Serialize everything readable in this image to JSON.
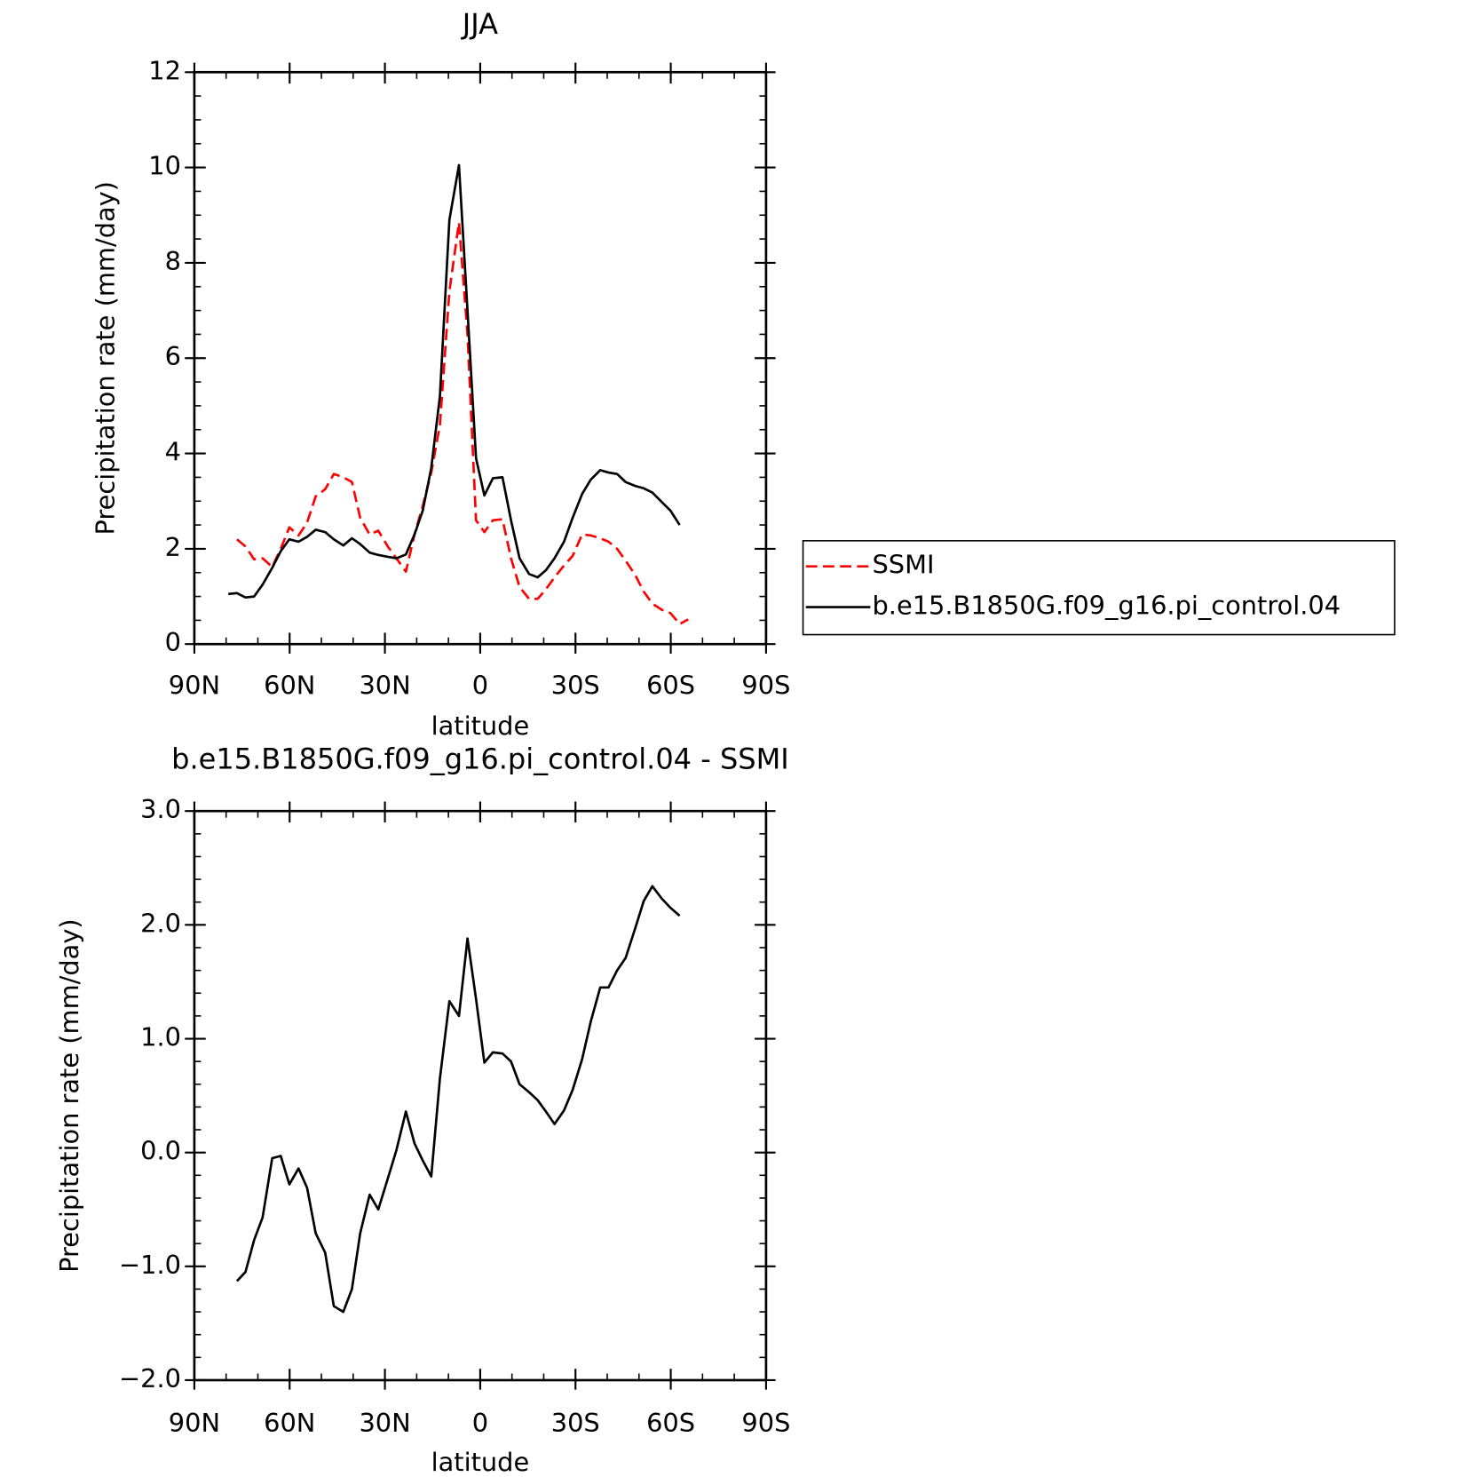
{
  "chart_data": [
    {
      "type": "line",
      "title": "JJA",
      "x_label": "latitude",
      "y_label": "Precipitation rate (mm/day)",
      "xlim": [
        90,
        -90
      ],
      "xticks": [
        {
          "value": 90,
          "label": "90N"
        },
        {
          "value": 60,
          "label": "60N"
        },
        {
          "value": 30,
          "label": "30N"
        },
        0,
        {
          "value": -30,
          "label": "30S"
        },
        {
          "value": -60,
          "label": "60S"
        },
        {
          "value": -90,
          "label": "90S"
        }
      ],
      "xminorticks": [
        80,
        70,
        50,
        40,
        20,
        10,
        -10,
        -20,
        -40,
        -50,
        -70,
        -80
      ],
      "ylim": [
        0,
        12
      ],
      "yticks": [
        0,
        2,
        4,
        6,
        8,
        10,
        12
      ],
      "yminorticks": [
        0.5,
        1,
        1.5,
        2.5,
        3,
        3.5,
        4.5,
        5,
        5.5,
        6.5,
        7,
        7.5,
        8.5,
        9,
        9.5,
        10.5,
        11,
        11.5
      ],
      "legend": "right",
      "series": [
        {
          "name": "SSMI",
          "color": "#ff0000",
          "line_style": "dashed",
          "x": [
            76.6,
            73.9,
            71.2,
            68.5,
            65.5,
            62.8,
            60.1,
            57.2,
            54.5,
            51.8,
            48.8,
            46.1,
            43.1,
            40.4,
            37.8,
            34.8,
            32.1,
            29.1,
            26.4,
            23.4,
            20.7,
            18.1,
            15.4,
            12.7,
            9.7,
            6.7,
            4.0,
            1.3,
            -1.3,
            -4.0,
            -7.0,
            -9.7,
            -12.4,
            -15.4,
            -18.1,
            -20.7,
            -23.4,
            -26.4,
            -29.1,
            -32.1,
            -34.8,
            -37.8,
            -40.4,
            -43.1,
            -45.8,
            -48.8,
            -51.5,
            -54.2,
            -57.2,
            -59.9,
            -62.8,
            -65.5
          ],
          "values": [
            2.2,
            2.05,
            1.78,
            1.8,
            1.62,
            2.0,
            2.45,
            2.28,
            2.55,
            3.1,
            3.25,
            3.57,
            3.5,
            3.4,
            2.65,
            2.3,
            2.38,
            2.05,
            1.8,
            1.52,
            2.3,
            2.9,
            3.6,
            4.6,
            7.4,
            8.85,
            6.5,
            2.6,
            2.35,
            2.6,
            2.62,
            1.8,
            1.2,
            0.95,
            0.95,
            1.15,
            1.4,
            1.65,
            1.85,
            2.3,
            2.28,
            2.22,
            2.15,
            2.0,
            1.75,
            1.45,
            1.1,
            0.85,
            0.72,
            0.65,
            0.42,
            0.52
          ]
        },
        {
          "name": "b.e15.B1850G.f09_g16.pi_control.04",
          "color": "#000000",
          "line_style": "solid",
          "x": [
            79.3,
            76.6,
            73.9,
            71.2,
            68.5,
            65.5,
            62.8,
            60.1,
            57.2,
            54.5,
            51.8,
            48.8,
            46.1,
            43.1,
            40.4,
            37.8,
            34.8,
            32.1,
            29.1,
            26.4,
            23.4,
            20.7,
            18.1,
            15.4,
            12.7,
            9.7,
            6.7,
            4.0,
            1.3,
            -1.3,
            -4.0,
            -7.0,
            -9.7,
            -12.4,
            -15.4,
            -18.1,
            -20.7,
            -23.4,
            -26.4,
            -29.1,
            -32.1,
            -34.8,
            -37.8,
            -40.4,
            -43.1,
            -45.8,
            -48.8,
            -51.5,
            -54.2,
            -57.2,
            -59.9,
            -62.8
          ],
          "values": [
            1.05,
            1.07,
            0.98,
            1.0,
            1.25,
            1.6,
            1.95,
            2.2,
            2.15,
            2.25,
            2.4,
            2.35,
            2.2,
            2.07,
            2.22,
            2.1,
            1.92,
            1.87,
            1.83,
            1.8,
            1.88,
            2.3,
            2.8,
            3.7,
            5.2,
            8.9,
            10.05,
            7.0,
            3.9,
            3.12,
            3.48,
            3.5,
            2.6,
            1.8,
            1.47,
            1.4,
            1.55,
            1.8,
            2.15,
            2.65,
            3.15,
            3.45,
            3.65,
            3.6,
            3.57,
            3.4,
            3.32,
            3.27,
            3.18,
            2.98,
            2.8,
            2.5
          ]
        }
      ]
    },
    {
      "type": "line",
      "title": "b.e15.B1850G.f09_g16.pi_control.04 - SSMI",
      "x_label": "latitude",
      "y_label": "Precipitation rate (mm/day)",
      "xlim": [
        90,
        -90
      ],
      "xticks": [
        {
          "value": 90,
          "label": "90N"
        },
        {
          "value": 60,
          "label": "60N"
        },
        {
          "value": 30,
          "label": "30N"
        },
        0,
        {
          "value": -30,
          "label": "30S"
        },
        {
          "value": -60,
          "label": "60S"
        },
        {
          "value": -90,
          "label": "90S"
        }
      ],
      "xminorticks": [
        80,
        70,
        50,
        40,
        20,
        10,
        -10,
        -20,
        -40,
        -50,
        -70,
        -80
      ],
      "ylim": [
        -2,
        3
      ],
      "yticks": [
        {
          "value": -2,
          "label": "−2.0"
        },
        {
          "value": -1,
          "label": "−1.0"
        },
        {
          "value": 0,
          "label": "0.0"
        },
        {
          "value": 1,
          "label": "1.0"
        },
        {
          "value": 2,
          "label": "2.0"
        },
        {
          "value": 3,
          "label": "3.0"
        }
      ],
      "yminorticks": [
        -1.8,
        -1.6,
        -1.4,
        -1.2,
        -0.8,
        -0.6,
        -0.4,
        -0.2,
        0.2,
        0.4,
        0.6,
        0.8,
        1.2,
        1.4,
        1.6,
        1.8,
        2.2,
        2.4,
        2.6,
        2.8
      ],
      "series": [
        {
          "color": "#000000",
          "line_style": "solid",
          "x": [
            76.6,
            73.9,
            71.2,
            68.5,
            65.5,
            62.8,
            60.1,
            57.2,
            54.5,
            51.8,
            48.8,
            46.1,
            43.1,
            40.4,
            37.8,
            34.8,
            32.1,
            29.1,
            26.4,
            23.4,
            20.7,
            18.1,
            15.4,
            12.7,
            9.7,
            6.7,
            4.0,
            1.3,
            -1.3,
            -4.0,
            -7.0,
            -9.7,
            -12.4,
            -15.4,
            -18.1,
            -20.7,
            -23.4,
            -26.4,
            -29.1,
            -32.1,
            -34.8,
            -37.8,
            -40.4,
            -43.1,
            -45.8,
            -48.8,
            -51.5,
            -54.2,
            -57.2,
            -59.9,
            -62.8
          ],
          "values": [
            -1.13,
            -1.05,
            -0.77,
            -0.57,
            -0.05,
            -0.03,
            -0.28,
            -0.14,
            -0.31,
            -0.71,
            -0.88,
            -1.35,
            -1.4,
            -1.2,
            -0.71,
            -0.37,
            -0.5,
            -0.23,
            0.02,
            0.36,
            0.08,
            -0.07,
            -0.21,
            0.65,
            1.33,
            1.2,
            1.88,
            1.35,
            0.79,
            0.88,
            0.87,
            0.8,
            0.6,
            0.53,
            0.46,
            0.36,
            0.25,
            0.37,
            0.55,
            0.82,
            1.15,
            1.45,
            1.45,
            1.6,
            1.71,
            1.97,
            2.21,
            2.34,
            2.23,
            2.15,
            2.08
          ]
        }
      ]
    }
  ]
}
